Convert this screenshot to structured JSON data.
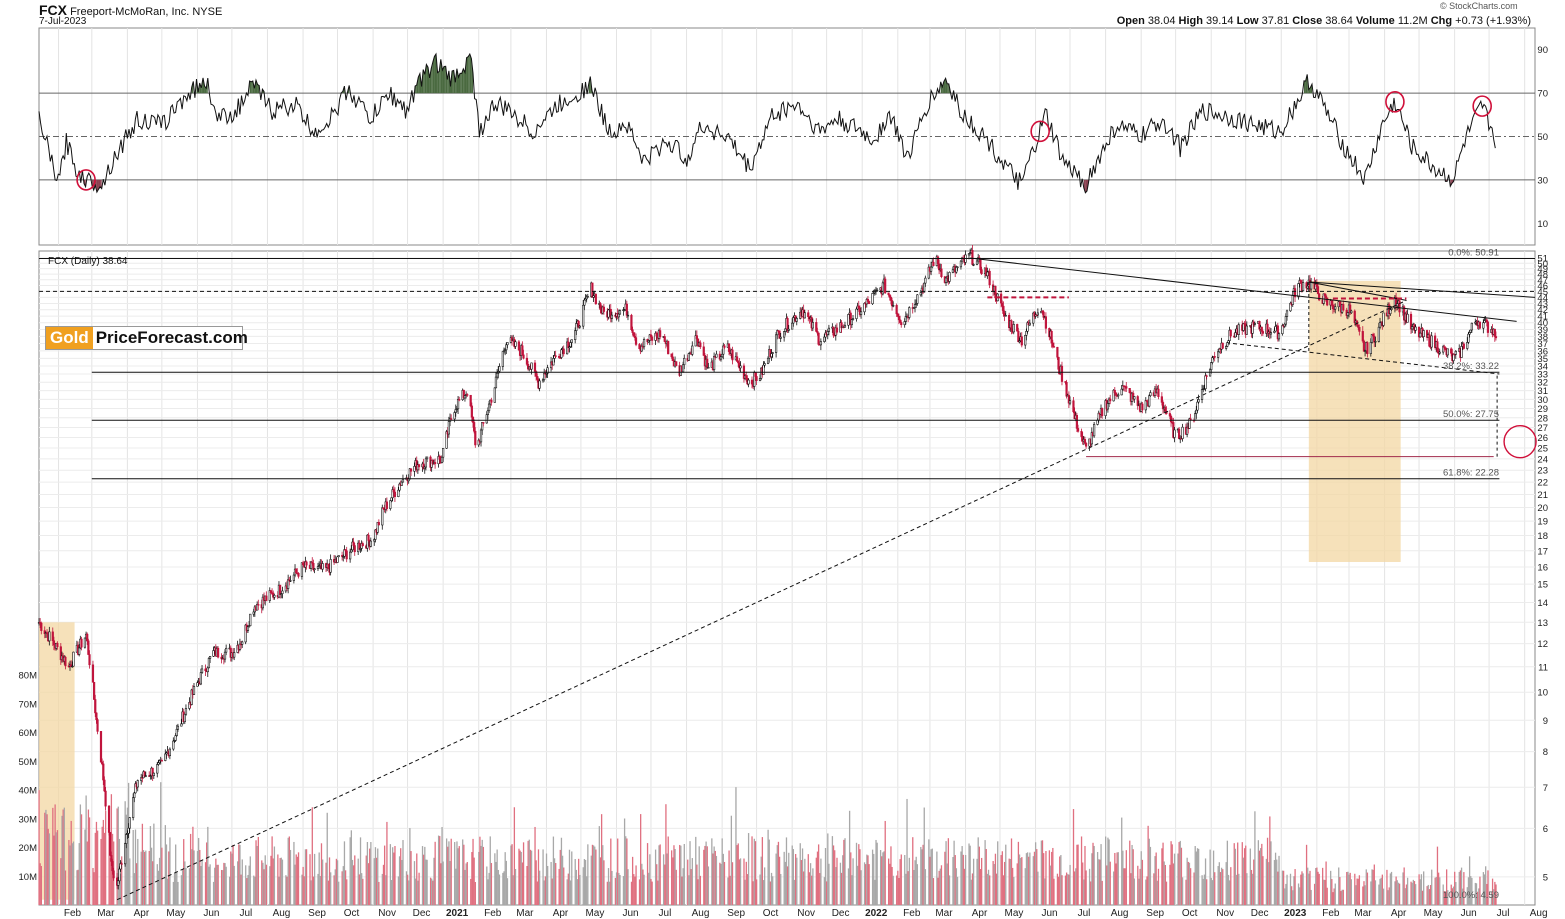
{
  "header": {
    "symbol": "FCX",
    "company": "Freeport-McMoRan, Inc.",
    "exchange": "NYSE",
    "date": "7-Jul-2023",
    "open_label": "Open",
    "open": "38.04",
    "high_label": "High",
    "high": "39.14",
    "low_label": "Low",
    "low": "37.81",
    "close_label": "Close",
    "close": "38.64",
    "volume_label": "Volume",
    "volume": "11.2M",
    "chg_label": "Chg",
    "chg": "+0.73 (+1.93%)",
    "watermark": "© StockCharts.com"
  },
  "logo": {
    "part1": "Gold",
    "part2": "PriceForecast.com"
  },
  "colors": {
    "up": "#111111",
    "down": "#c0143c",
    "vol_up": "#a8a8a8",
    "vol_down": "#e07080",
    "rsi_fill_high": "#4a6a40",
    "rsi_fill_low": "#8a4050",
    "box": "#f3d7a3",
    "marker": "#d0103a",
    "dashed_red": "#c0143c"
  },
  "chart_data": {
    "type": "candlestick",
    "price_legend": "FCX (Daily) 38.64",
    "price_axis_ticks": [
      5,
      6,
      7,
      8,
      9,
      10,
      11,
      12,
      13,
      14,
      15,
      16,
      17,
      18,
      19,
      20,
      21,
      22,
      23,
      24,
      25,
      26,
      27,
      28,
      29,
      30,
      31,
      32,
      33,
      34,
      35,
      36,
      37,
      38,
      39,
      40,
      41,
      42,
      43,
      44,
      45,
      46,
      47,
      48,
      49,
      50,
      51
    ],
    "price_axis_scale": "log",
    "price_ylim": [
      4.5,
      51
    ],
    "x_labels": [
      "Feb",
      "Mar",
      "Apr",
      "May",
      "Jun",
      "Jul",
      "Aug",
      "Sep",
      "Oct",
      "Nov",
      "Dec",
      "2021",
      "Feb",
      "Mar",
      "Apr",
      "May",
      "Jun",
      "Jul",
      "Aug",
      "Sep",
      "Oct",
      "Nov",
      "Dec",
      "2022",
      "Feb",
      "Mar",
      "Apr",
      "May",
      "Jun",
      "Jul",
      "Aug",
      "Sep",
      "Oct",
      "Nov",
      "Dec",
      "2023",
      "Feb",
      "Mar",
      "Apr",
      "May",
      "Jun",
      "Jul",
      "Aug"
    ],
    "x_range": [
      "2020-01-15",
      "2023-08-10"
    ],
    "price_path": [
      [
        "2020-01-15",
        13.0
      ],
      [
        "2020-02-10",
        11.0
      ],
      [
        "2020-02-25",
        12.4
      ],
      [
        "2020-03-05",
        9.0
      ],
      [
        "2020-03-18",
        5.2
      ],
      [
        "2020-03-23",
        4.82
      ],
      [
        "2020-04-10",
        7.2
      ],
      [
        "2020-05-01",
        7.6
      ],
      [
        "2020-05-15",
        8.7
      ],
      [
        "2020-06-05",
        10.7
      ],
      [
        "2020-06-15",
        11.6
      ],
      [
        "2020-07-01",
        11.6
      ],
      [
        "2020-07-10",
        12.2
      ],
      [
        "2020-07-20",
        13.8
      ],
      [
        "2020-08-10",
        14.6
      ],
      [
        "2020-09-01",
        16.0
      ],
      [
        "2020-09-20",
        15.8
      ],
      [
        "2020-10-15",
        17.2
      ],
      [
        "2020-11-01",
        17.8
      ],
      [
        "2020-11-10",
        19.8
      ],
      [
        "2020-11-25",
        22.0
      ],
      [
        "2020-12-10",
        23.6
      ],
      [
        "2020-12-31",
        24.0
      ],
      [
        "2021-01-10",
        29.0
      ],
      [
        "2021-01-22",
        31.0
      ],
      [
        "2021-01-30",
        24.8
      ],
      [
        "2021-02-15",
        31.5
      ],
      [
        "2021-02-25",
        37.5
      ],
      [
        "2021-03-10",
        36.0
      ],
      [
        "2021-03-25",
        32.0
      ],
      [
        "2021-04-10",
        35.5
      ],
      [
        "2021-04-25",
        38.0
      ],
      [
        "2021-05-10",
        45.5
      ],
      [
        "2021-05-20",
        41.5
      ],
      [
        "2021-06-10",
        42.0
      ],
      [
        "2021-06-20",
        36.5
      ],
      [
        "2021-07-10",
        38.5
      ],
      [
        "2021-07-25",
        33.0
      ],
      [
        "2021-08-10",
        38.0
      ],
      [
        "2021-08-20",
        33.5
      ],
      [
        "2021-09-05",
        36.5
      ],
      [
        "2021-09-25",
        32.0
      ],
      [
        "2021-10-05",
        33.0
      ],
      [
        "2021-10-20",
        38.5
      ],
      [
        "2021-11-10",
        42.0
      ],
      [
        "2021-11-25",
        37.5
      ],
      [
        "2021-12-10",
        39.0
      ],
      [
        "2021-12-31",
        42.0
      ],
      [
        "2022-01-20",
        46.0
      ],
      [
        "2022-02-05",
        40.0
      ],
      [
        "2022-02-25",
        46.5
      ],
      [
        "2022-03-05",
        51.0
      ],
      [
        "2022-03-15",
        47.0
      ],
      [
        "2022-04-05",
        51.5
      ],
      [
        "2022-04-20",
        48.0
      ],
      [
        "2022-05-05",
        41.0
      ],
      [
        "2022-05-20",
        37.5
      ],
      [
        "2022-06-05",
        43.0
      ],
      [
        "2022-06-20",
        34.5
      ],
      [
        "2022-07-05",
        28.0
      ],
      [
        "2022-07-15",
        24.8
      ],
      [
        "2022-08-01",
        29.5
      ],
      [
        "2022-08-15",
        31.5
      ],
      [
        "2022-09-01",
        29.0
      ],
      [
        "2022-09-15",
        31.0
      ],
      [
        "2022-10-01",
        26.0
      ],
      [
        "2022-10-15",
        27.5
      ],
      [
        "2022-11-05",
        36.0
      ],
      [
        "2022-11-20",
        38.5
      ],
      [
        "2022-12-10",
        39.5
      ],
      [
        "2022-12-31",
        38.5
      ],
      [
        "2023-01-15",
        46.0
      ],
      [
        "2023-01-25",
        46.5
      ],
      [
        "2023-02-10",
        43.0
      ],
      [
        "2023-03-01",
        42.0
      ],
      [
        "2023-03-15",
        36.0
      ],
      [
        "2023-03-25",
        38.5
      ],
      [
        "2023-04-10",
        44.0
      ],
      [
        "2023-04-25",
        39.0
      ],
      [
        "2023-05-10",
        37.5
      ],
      [
        "2023-05-31",
        35.0
      ],
      [
        "2023-06-05",
        35.5
      ],
      [
        "2023-06-20",
        40.5
      ],
      [
        "2023-07-07",
        38.64
      ]
    ],
    "rsi_axis_ticks": [
      10,
      30,
      50,
      70,
      90
    ],
    "rsi_ylim": [
      0,
      100
    ],
    "rsi_levels": [
      30,
      50,
      70
    ],
    "rsi_path": [
      [
        "2020-01-15",
        58
      ],
      [
        "2020-02-01",
        28
      ],
      [
        "2020-02-08",
        48
      ],
      [
        "2020-02-15",
        36
      ],
      [
        "2020-02-25",
        30
      ],
      [
        "2020-03-10",
        28
      ],
      [
        "2020-03-20",
        40
      ],
      [
        "2020-04-10",
        58
      ],
      [
        "2020-05-01",
        55
      ],
      [
        "2020-05-20",
        68
      ],
      [
        "2020-06-08",
        76
      ],
      [
        "2020-06-20",
        58
      ],
      [
        "2020-07-05",
        62
      ],
      [
        "2020-07-20",
        74
      ],
      [
        "2020-08-05",
        62
      ],
      [
        "2020-08-25",
        65
      ],
      [
        "2020-09-10",
        52
      ],
      [
        "2020-09-25",
        58
      ],
      [
        "2020-10-10",
        72
      ],
      [
        "2020-10-30",
        58
      ],
      [
        "2020-11-15",
        70
      ],
      [
        "2020-11-30",
        62
      ],
      [
        "2020-12-10",
        74
      ],
      [
        "2020-12-25",
        85
      ],
      [
        "2021-01-08",
        76
      ],
      [
        "2021-01-25",
        86
      ],
      [
        "2021-02-02",
        52
      ],
      [
        "2021-02-15",
        65
      ],
      [
        "2021-03-05",
        60
      ],
      [
        "2021-03-20",
        52
      ],
      [
        "2021-04-10",
        64
      ],
      [
        "2021-05-10",
        74
      ],
      [
        "2021-05-25",
        52
      ],
      [
        "2021-06-10",
        56
      ],
      [
        "2021-06-25",
        38
      ],
      [
        "2021-07-15",
        48
      ],
      [
        "2021-08-01",
        40
      ],
      [
        "2021-08-15",
        55
      ],
      [
        "2021-09-05",
        50
      ],
      [
        "2021-09-25",
        35
      ],
      [
        "2021-10-15",
        60
      ],
      [
        "2021-11-05",
        65
      ],
      [
        "2021-11-25",
        52
      ],
      [
        "2021-12-10",
        58
      ],
      [
        "2021-12-31",
        52
      ],
      [
        "2022-01-10",
        48
      ],
      [
        "2022-01-25",
        60
      ],
      [
        "2022-02-10",
        40
      ],
      [
        "2022-02-28",
        66
      ],
      [
        "2022-03-15",
        76
      ],
      [
        "2022-03-30",
        60
      ],
      [
        "2022-04-20",
        48
      ],
      [
        "2022-05-10",
        33
      ],
      [
        "2022-05-20",
        28
      ],
      [
        "2022-06-10",
        60
      ],
      [
        "2022-06-25",
        38
      ],
      [
        "2022-07-15",
        28
      ],
      [
        "2022-08-10",
        55
      ],
      [
        "2022-09-01",
        50
      ],
      [
        "2022-09-20",
        58
      ],
      [
        "2022-10-05",
        45
      ],
      [
        "2022-10-25",
        62
      ],
      [
        "2022-11-10",
        60
      ],
      [
        "2022-12-05",
        56
      ],
      [
        "2022-12-31",
        52
      ],
      [
        "2023-01-25",
        76
      ],
      [
        "2023-02-05",
        66
      ],
      [
        "2023-02-25",
        45
      ],
      [
        "2023-03-15",
        30
      ],
      [
        "2023-03-30",
        55
      ],
      [
        "2023-04-10",
        66
      ],
      [
        "2023-04-25",
        45
      ],
      [
        "2023-05-15",
        35
      ],
      [
        "2023-05-31",
        30
      ],
      [
        "2023-06-10",
        48
      ],
      [
        "2023-06-25",
        64
      ],
      [
        "2023-07-07",
        48
      ]
    ],
    "volume_axis_ticks": [
      "10M",
      "20M",
      "30M",
      "40M",
      "50M",
      "60M",
      "70M",
      "80M"
    ],
    "volume_ylim": [
      0,
      80
    ],
    "fib_levels": [
      {
        "label": "0.0%: 50.91",
        "value": 50.91
      },
      {
        "label": "38.2%: 33.22",
        "value": 33.22
      },
      {
        "label": "50.0%: 27.75",
        "value": 27.75
      },
      {
        "label": "61.8%: 22.28",
        "value": 22.28
      },
      {
        "label": "100.0%: 4.59",
        "value": 4.59
      }
    ],
    "annotations": {
      "shaded_boxes": [
        {
          "x0": "2020-01-15",
          "x1": "2020-02-15",
          "y_low": 4.59,
          "y_high": 13.0
        },
        {
          "x0": "2023-01-25",
          "x1": "2023-04-15",
          "y_low": 16.3,
          "y_high": 46.8
        }
      ],
      "rsi_circles": [
        "2020-02-25",
        "2022-06-05",
        "2023-04-10",
        "2023-06-25"
      ],
      "price_circle": {
        "x": "2023-07-28",
        "y": 25.6
      },
      "lines": [
        {
          "style": "solid",
          "from": [
            "2022-04-05",
            51.0
          ],
          "to": [
            "2023-07-25",
            40.2
          ]
        },
        {
          "style": "solid",
          "from": [
            "2023-01-25",
            46.6
          ],
          "to": [
            "2023-08-10",
            44.0
          ]
        },
        {
          "style": "solid",
          "from": [
            "2023-01-25",
            46.6
          ],
          "to": [
            "2023-04-20",
            43.5
          ]
        },
        {
          "style": "dashed",
          "from": [
            "2020-03-23",
            4.59
          ],
          "to": [
            "2023-04-20",
            43.5
          ]
        },
        {
          "style": "dashed",
          "from": [
            "2022-11-20",
            37.0
          ],
          "to": [
            "2023-07-10",
            33.0
          ]
        },
        {
          "style": "dashed",
          "from": [
            "2020-01-15",
            45.0
          ],
          "to": [
            "2023-08-10",
            45.0
          ]
        },
        {
          "style": "solid",
          "from": [
            "2020-03-01",
            33.22
          ],
          "to": [
            "2023-07-10",
            33.22
          ]
        },
        {
          "style": "solid",
          "from": [
            "2020-03-01",
            27.75
          ],
          "to": [
            "2023-07-10",
            27.75
          ]
        },
        {
          "style": "solid",
          "from": [
            "2020-03-01",
            22.28
          ],
          "to": [
            "2023-07-10",
            22.28
          ]
        },
        {
          "style": "solid",
          "from": [
            "2020-01-15",
            50.91
          ],
          "to": [
            "2023-08-10",
            50.91
          ]
        }
      ],
      "support_line": {
        "from": [
          "2022-07-15",
          24.2
        ],
        "to": [
          "2023-07-05",
          24.2
        ]
      },
      "red_dashed": [
        {
          "from": [
            "2022-04-20",
            44.0
          ],
          "to": [
            "2022-06-30",
            44.0
          ]
        },
        {
          "from": [
            "2023-02-15",
            43.8
          ],
          "to": [
            "2023-04-20",
            43.8
          ]
        }
      ],
      "vertical_dashed": [
        {
          "x": "2023-01-25",
          "from": 46.6,
          "to": 36.0
        },
        {
          "x": "2023-07-08",
          "from": 32.8,
          "to": 24.2
        }
      ]
    }
  }
}
